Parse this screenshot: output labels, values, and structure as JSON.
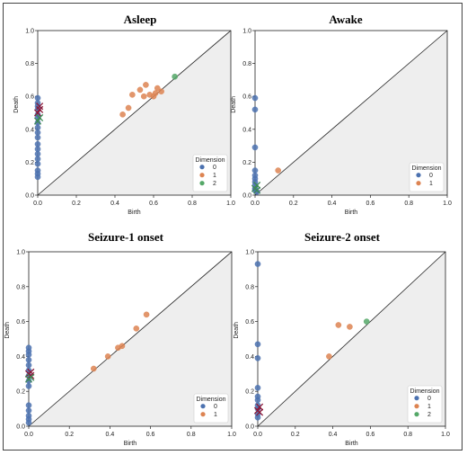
{
  "chart_data": [
    {
      "type": "scatter",
      "title": "Asleep",
      "xlabel": "Birth",
      "ylabel": "Death",
      "xlim": [
        0,
        1
      ],
      "ylim": [
        0,
        1
      ],
      "xticks": [
        "0.0",
        "0.2",
        "0.4",
        "0.6",
        "0.8",
        "1.0"
      ],
      "yticks": [
        "0.0",
        "0.2",
        "0.4",
        "0.6",
        "0.8",
        "1.0"
      ],
      "legend_title": "Dimension",
      "legend_placement": "lower-right",
      "series": [
        {
          "name": "0",
          "color": "#4c72b0",
          "marker": "o",
          "points": [
            [
              0,
              0.59
            ],
            [
              0,
              0.56
            ],
            [
              0,
              0.54
            ],
            [
              0,
              0.52
            ],
            [
              0,
              0.49
            ],
            [
              0,
              0.47
            ],
            [
              0,
              0.44
            ],
            [
              0,
              0.41
            ],
            [
              0,
              0.38
            ],
            [
              0,
              0.35
            ],
            [
              0,
              0.31
            ],
            [
              0,
              0.28
            ],
            [
              0,
              0.25
            ],
            [
              0,
              0.22
            ],
            [
              0,
              0.19
            ],
            [
              0,
              0.15
            ],
            [
              0,
              0.13
            ],
            [
              0,
              0.11
            ]
          ]
        },
        {
          "name": "1",
          "color": "#dd8452",
          "marker": "o",
          "points": [
            [
              0.44,
              0.49
            ],
            [
              0.47,
              0.53
            ],
            [
              0.49,
              0.61
            ],
            [
              0.53,
              0.64
            ],
            [
              0.55,
              0.6
            ],
            [
              0.56,
              0.67
            ],
            [
              0.58,
              0.61
            ],
            [
              0.6,
              0.6
            ],
            [
              0.61,
              0.62
            ],
            [
              0.62,
              0.65
            ],
            [
              0.64,
              0.63
            ]
          ]
        },
        {
          "name": "2",
          "color": "#55a868",
          "marker": "o",
          "points": [
            [
              0.71,
              0.72
            ]
          ]
        },
        {
          "name": "",
          "color": "#8b1a3a",
          "marker": "x",
          "points": [
            [
              0.01,
              0.54
            ],
            [
              0.01,
              0.52
            ],
            [
              0.0,
              0.5
            ]
          ]
        },
        {
          "name": "",
          "color": "#3d8a55",
          "marker": "x",
          "points": [
            [
              0.01,
              0.47
            ],
            [
              0.0,
              0.45
            ]
          ]
        }
      ]
    },
    {
      "type": "scatter",
      "title": "Awake",
      "xlabel": "Birth",
      "ylabel": "Death",
      "xlim": [
        0,
        1
      ],
      "ylim": [
        0,
        1
      ],
      "xticks": [
        "0.0",
        "0.2",
        "0.4",
        "0.6",
        "0.8",
        "1.0"
      ],
      "yticks": [
        "0.0",
        "0.2",
        "0.4",
        "0.6",
        "0.8",
        "1.0"
      ],
      "legend_title": "Dimension",
      "legend_placement": "lower-right",
      "series": [
        {
          "name": "0",
          "color": "#4c72b0",
          "marker": "o",
          "points": [
            [
              0,
              0.59
            ],
            [
              0,
              0.52
            ],
            [
              0,
              0.29
            ],
            [
              0,
              0.15
            ],
            [
              0,
              0.12
            ],
            [
              0,
              0.1
            ],
            [
              0,
              0.08
            ],
            [
              0,
              0.06
            ],
            [
              0,
              0.04
            ],
            [
              0,
              0.03
            ],
            [
              0.01,
              0.02
            ]
          ]
        },
        {
          "name": "1",
          "color": "#dd8452",
          "marker": "o",
          "points": [
            [
              0.12,
              0.15
            ]
          ]
        },
        {
          "name": "",
          "color": "#3d8a55",
          "marker": "x",
          "points": [
            [
              0.01,
              0.06
            ],
            [
              0.0,
              0.04
            ],
            [
              0.01,
              0.03
            ]
          ]
        }
      ]
    },
    {
      "type": "scatter",
      "title": "Seizure-1 onset",
      "xlabel": "Birth",
      "ylabel": "Death",
      "xlim": [
        0,
        1
      ],
      "ylim": [
        0,
        1
      ],
      "xticks": [
        "0.0",
        "0.2",
        "0.4",
        "0.6",
        "0.8",
        "1.0"
      ],
      "yticks": [
        "0.0",
        "0.2",
        "0.4",
        "0.6",
        "0.8",
        "1.0"
      ],
      "legend_title": "Dimension",
      "legend_placement": "lower-right",
      "series": [
        {
          "name": "0",
          "color": "#4c72b0",
          "marker": "o",
          "points": [
            [
              0,
              0.45
            ],
            [
              0,
              0.43
            ],
            [
              0,
              0.41
            ],
            [
              0,
              0.38
            ],
            [
              0,
              0.35
            ],
            [
              0,
              0.32
            ],
            [
              0,
              0.29
            ],
            [
              0,
              0.26
            ],
            [
              0,
              0.23
            ],
            [
              0,
              0.12
            ],
            [
              0,
              0.09
            ],
            [
              0,
              0.06
            ],
            [
              0,
              0.04
            ],
            [
              0,
              0.02
            ]
          ]
        },
        {
          "name": "1",
          "color": "#dd8452",
          "marker": "o",
          "points": [
            [
              0.32,
              0.33
            ],
            [
              0.39,
              0.4
            ],
            [
              0.44,
              0.45
            ],
            [
              0.46,
              0.46
            ],
            [
              0.53,
              0.56
            ],
            [
              0.58,
              0.64
            ]
          ]
        },
        {
          "name": "",
          "color": "#8b1a3a",
          "marker": "x",
          "points": [
            [
              0.01,
              0.31
            ],
            [
              0.0,
              0.3
            ],
            [
              0.01,
              0.29
            ]
          ]
        },
        {
          "name": "",
          "color": "#3d8a55",
          "marker": "x",
          "points": [
            [
              0.01,
              0.28
            ],
            [
              0.0,
              0.27
            ]
          ]
        }
      ]
    },
    {
      "type": "scatter",
      "title": "Seizure-2 onset",
      "xlabel": "Birth",
      "ylabel": "Death",
      "xlim": [
        0,
        1
      ],
      "ylim": [
        0,
        1
      ],
      "xticks": [
        "0.0",
        "0.2",
        "0.4",
        "0.6",
        "0.8",
        "1.0"
      ],
      "yticks": [
        "0.0",
        "0.2",
        "0.4",
        "0.6",
        "0.8",
        "1.0"
      ],
      "legend_title": "Dimension",
      "legend_placement": "lower-right",
      "series": [
        {
          "name": "0",
          "color": "#4c72b0",
          "marker": "o",
          "points": [
            [
              0,
              0.93
            ],
            [
              0,
              0.47
            ],
            [
              0,
              0.39
            ],
            [
              0,
              0.22
            ],
            [
              0,
              0.17
            ],
            [
              0,
              0.15
            ],
            [
              0,
              0.12
            ],
            [
              0,
              0.1
            ],
            [
              0,
              0.07
            ],
            [
              0,
              0.05
            ]
          ]
        },
        {
          "name": "1",
          "color": "#dd8452",
          "marker": "o",
          "points": [
            [
              0.38,
              0.4
            ],
            [
              0.43,
              0.58
            ],
            [
              0.49,
              0.57
            ]
          ]
        },
        {
          "name": "2",
          "color": "#55a868",
          "marker": "o",
          "points": [
            [
              0.58,
              0.6
            ]
          ]
        },
        {
          "name": "",
          "color": "#8b1a3a",
          "marker": "x",
          "points": [
            [
              0.01,
              0.11
            ],
            [
              0.0,
              0.09
            ],
            [
              0.01,
              0.08
            ]
          ]
        }
      ]
    }
  ]
}
